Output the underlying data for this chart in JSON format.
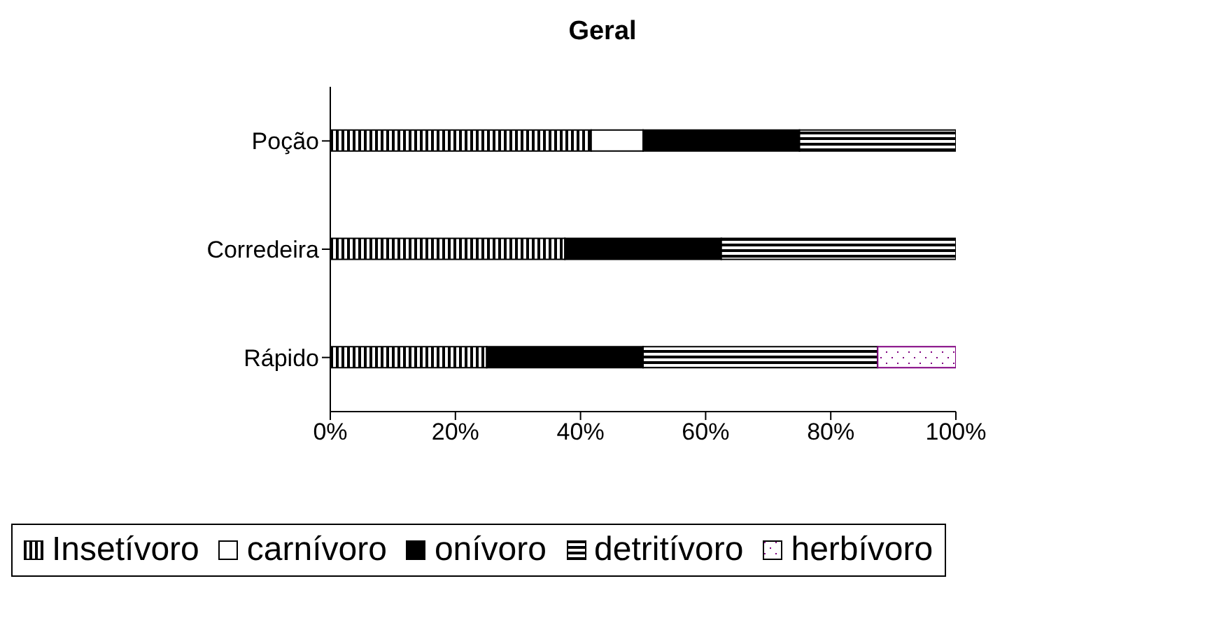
{
  "chart_data": {
    "type": "bar",
    "orientation": "horizontal",
    "stacked": true,
    "title": "Geral",
    "categories": [
      "Poção",
      "Corredeira",
      "Rápido"
    ],
    "series": [
      {
        "name": "Insetívoro",
        "color": "#000000",
        "values": [
          41.7,
          37.5,
          25
        ]
      },
      {
        "name": "carnívoro",
        "color": "#ffffff",
        "values": [
          8.3,
          0,
          0
        ]
      },
      {
        "name": "onívoro",
        "color": "#000000",
        "values": [
          25,
          25,
          25
        ]
      },
      {
        "name": "detritívoro",
        "color": "#000000",
        "values": [
          25,
          37.5,
          37.5
        ]
      },
      {
        "name": "herbívoro",
        "color": "#800080",
        "values": [
          0,
          0,
          12.5
        ]
      }
    ],
    "xlim": [
      0,
      100
    ],
    "xticks": [
      {
        "value": 0,
        "label": "0%"
      },
      {
        "value": 20,
        "label": "20%"
      },
      {
        "value": 40,
        "label": "40%"
      },
      {
        "value": 60,
        "label": "60%"
      },
      {
        "value": 80,
        "label": "80%"
      },
      {
        "value": 100,
        "label": "100%"
      }
    ],
    "grid": false,
    "legend": "bottom"
  }
}
